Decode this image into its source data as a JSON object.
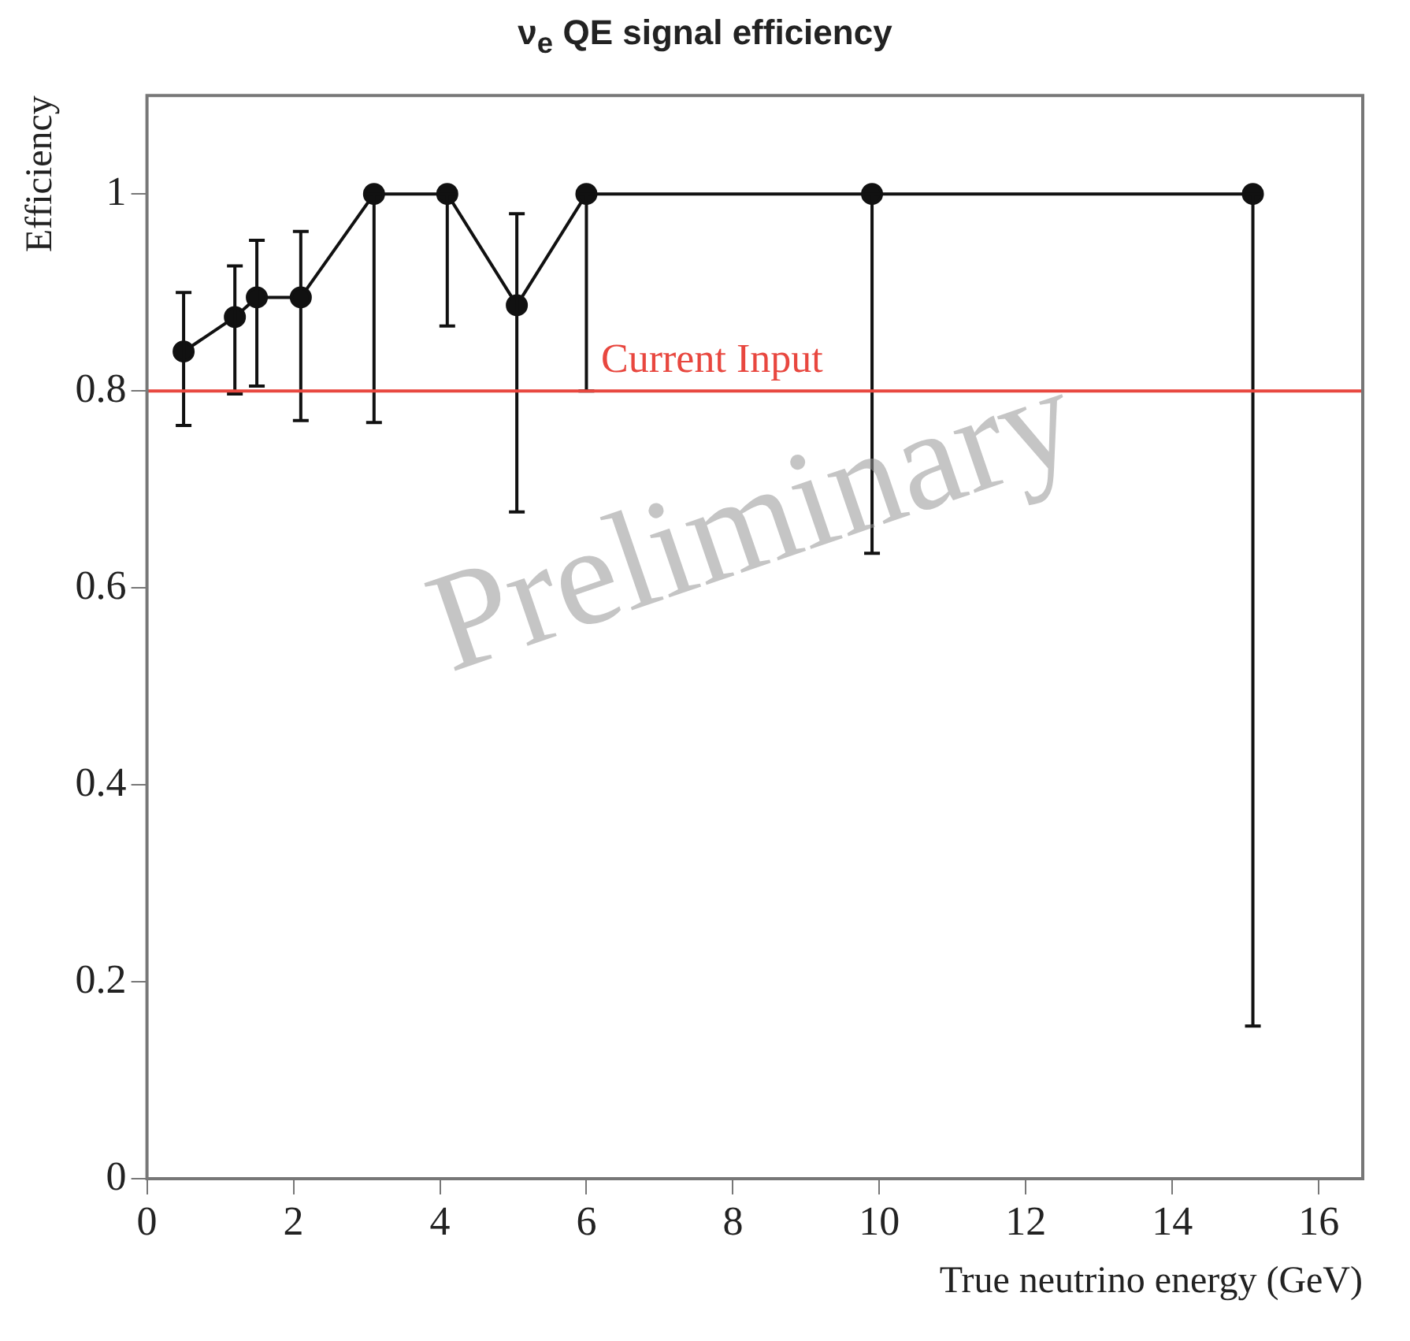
{
  "chart_data": {
    "type": "line",
    "title": "ν$_{e}$ QE signal efficiency",
    "xlabel": "True neutrino energy (GeV)",
    "ylabel": "Efficiency",
    "x": [
      0.5,
      1.2,
      1.5,
      2.1,
      3.1,
      4.1,
      5.05,
      6.0,
      9.9,
      15.1
    ],
    "series": [
      {
        "color": "#111111",
        "values": [
          0.84,
          0.875,
          0.895,
          0.895,
          1,
          1,
          0.887,
          1,
          1,
          1
        ],
        "errors": [
          [
            0.765,
            0.9
          ],
          [
            0.797,
            0.927
          ],
          [
            0.805,
            0.953
          ],
          [
            0.77,
            0.962
          ],
          [
            0.768,
            1
          ],
          [
            0.866,
            1
          ],
          [
            0.677,
            0.98
          ],
          [
            0.8,
            1
          ],
          [
            0.635,
            1
          ],
          [
            0.155,
            1
          ]
        ]
      }
    ],
    "xlim": [
      0,
      16.6
    ],
    "xticks": [
      0,
      2,
      4,
      6,
      8,
      10,
      12,
      14,
      16
    ],
    "ylim": [
      0,
      1.1
    ],
    "yticks": [
      0,
      0.2,
      0.4,
      0.6,
      0.8,
      1
    ],
    "ref_lines": [
      {
        "axis": "y",
        "value": 0.8,
        "label": "Current Input",
        "color": "#e8473f"
      }
    ],
    "annotations": [
      "Preliminary"
    ],
    "grid": false,
    "legend": false,
    "marker": "circle",
    "line_style": "solid"
  }
}
